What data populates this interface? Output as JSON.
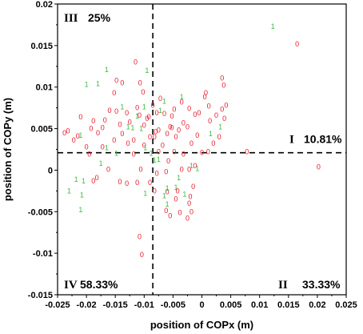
{
  "chart_data": {
    "type": "scatter",
    "xlabel": "position of COPx (m)",
    "ylabel": "position of COPy (m)",
    "xlim": [
      -0.025,
      0.025
    ],
    "ylim": [
      -0.015,
      0.02
    ],
    "xticks": [
      "-0.025",
      "-0.02",
      "-0.015",
      "-0.01",
      "-0.005",
      "0",
      "0.005",
      "0.01",
      "0.015",
      "0.02",
      "0.025"
    ],
    "yticks": [
      "-0.015",
      "-0.01",
      "-0.005",
      "0",
      "0.005",
      "0.01",
      "0.015",
      "0.02"
    ],
    "grid": false,
    "divider_lines": {
      "x": -0.0085,
      "y": 0.0021,
      "style": "dashed"
    },
    "quadrants": [
      {
        "numeral": "I",
        "percent": "10.81%",
        "position": "right-middle"
      },
      {
        "numeral": "II",
        "percent": "33.33%",
        "position": "bottom-right"
      },
      {
        "numeral": "III",
        "percent": "25%",
        "position": "top-left"
      },
      {
        "numeral": "IV",
        "percent": "58.33%",
        "position": "bottom-left"
      }
    ],
    "series": [
      {
        "marker_text": "0",
        "color": "#e8182a",
        "points": [
          [
            0.0165,
            0.0152
          ],
          [
            0.0202,
            0.0004
          ],
          [
            0.0078,
            0.0022
          ],
          [
            0.0035,
            0.0111
          ],
          [
            0.0038,
            0.0102
          ],
          [
            0.0042,
            0.0078
          ],
          [
            0.0035,
            0.0073
          ],
          [
            0.0039,
            0.0062
          ],
          [
            0.0012,
            0.0077
          ],
          [
            0.0025,
            0.0066
          ],
          [
            0.0005,
            0.0088
          ],
          [
            0.0007,
            0.0093
          ],
          [
            0.0014,
            0.0059
          ],
          [
            -0.0005,
            0.0069
          ],
          [
            -0.0012,
            0.0067
          ],
          [
            -0.0022,
            0.0074
          ],
          [
            -0.0035,
            0.0082
          ],
          [
            -0.0048,
            0.0073
          ],
          [
            -0.0055,
            0.0052
          ],
          [
            -0.0065,
            0.0068
          ],
          [
            -0.0072,
            0.0086
          ],
          [
            -0.0078,
            0.0069
          ],
          [
            -0.0085,
            0.0078
          ],
          [
            -0.0092,
            0.0064
          ],
          [
            -0.0075,
            0.0048
          ],
          [
            -0.0082,
            0.004
          ],
          [
            -0.009,
            0.004
          ],
          [
            -0.01,
            0.0054
          ],
          [
            -0.0108,
            0.0066
          ],
          [
            -0.0112,
            0.0075
          ],
          [
            -0.0118,
            0.0036
          ],
          [
            -0.0125,
            0.0058
          ],
          [
            -0.013,
            0.0069
          ],
          [
            -0.0138,
            0.0044
          ],
          [
            -0.0142,
            0.0055
          ],
          [
            -0.0148,
            0.0071
          ],
          [
            -0.0152,
            0.0093
          ],
          [
            -0.016,
            0.0072
          ],
          [
            -0.0168,
            0.006
          ],
          [
            -0.0172,
            0.0051
          ],
          [
            -0.018,
            0.0045
          ],
          [
            -0.0188,
            0.0059
          ],
          [
            -0.0192,
            0.005
          ],
          [
            -0.02,
            0.0028
          ],
          [
            -0.021,
            0.0064
          ],
          [
            -0.0215,
            0.0041
          ],
          [
            -0.0222,
            0.0036
          ],
          [
            -0.0232,
            0.0047
          ],
          [
            -0.0238,
            0.0045
          ],
          [
            -0.0195,
            0.0019
          ],
          [
            -0.0172,
            0.0028
          ],
          [
            -0.0152,
            0.0036
          ],
          [
            -0.0162,
            0.0001
          ],
          [
            -0.0182,
            -0.0009
          ],
          [
            -0.0188,
            -0.0013
          ],
          [
            -0.0142,
            -0.0014
          ],
          [
            -0.013,
            -0.0016
          ],
          [
            -0.0112,
            -0.0015
          ],
          [
            -0.0106,
            0.0001
          ],
          [
            -0.0118,
            0.0019
          ],
          [
            -0.01,
            0.003
          ],
          [
            -0.0128,
            0.0032
          ],
          [
            -0.0138,
            0.0105
          ],
          [
            -0.0148,
            0.0108
          ],
          [
            -0.0115,
            0.013
          ],
          [
            -0.0107,
            0.0105
          ],
          [
            -0.0102,
            0.0094
          ],
          [
            -0.0095,
            0.0062
          ],
          [
            -0.008,
            0.0046
          ],
          [
            -0.0075,
            0.0022
          ],
          [
            -0.0068,
            0.003
          ],
          [
            -0.006,
            0.0044
          ],
          [
            -0.0052,
            0.0051
          ],
          [
            -0.0045,
            0.004
          ],
          [
            -0.004,
            0.0048
          ],
          [
            -0.0032,
            0.0057
          ],
          [
            -0.0025,
            0.0052
          ],
          [
            -0.0018,
            0.0032
          ],
          [
            -0.0008,
            0.0042
          ],
          [
            0.0,
            0.0021
          ],
          [
            0.0011,
            0.0022
          ],
          [
            0.002,
            0.0032
          ],
          [
            0.003,
            0.004
          ],
          [
            -0.0048,
            0.0022
          ],
          [
            -0.0058,
            0.0011
          ],
          [
            -0.0032,
            0.0019
          ],
          [
            -0.0022,
            0.0001
          ],
          [
            -0.0012,
            0.0005
          ],
          [
            -0.0035,
            0.0001
          ],
          [
            -0.0062,
            -0.0002
          ],
          [
            -0.0078,
            -0.0004
          ],
          [
            -0.009,
            -0.0015
          ],
          [
            -0.0082,
            -0.0025
          ],
          [
            -0.006,
            -0.0026
          ],
          [
            -0.0045,
            -0.0035
          ],
          [
            -0.0038,
            -0.0051
          ],
          [
            -0.0055,
            -0.0055
          ],
          [
            -0.0062,
            -0.0049
          ],
          [
            -0.002,
            -0.0032
          ],
          [
            -0.0022,
            -0.004
          ],
          [
            -0.0025,
            -0.0058
          ],
          [
            -0.0018,
            -0.005
          ],
          [
            -0.0042,
            -0.0025
          ],
          [
            -0.0108,
            -0.008
          ],
          [
            -0.0104,
            -0.0102
          ],
          [
            -0.0015,
            -0.002
          ],
          [
            -0.0052,
            0.0065
          ]
        ]
      },
      {
        "marker_text": "1",
        "color": "#3dbb3d",
        "points": [
          [
            0.0123,
            0.0173
          ],
          [
            0.0015,
            0.0044
          ],
          [
            0.0032,
            0.0052
          ],
          [
            -0.0035,
            0.0088
          ],
          [
            -0.0065,
            0.0083
          ],
          [
            -0.0072,
            0.0072
          ],
          [
            -0.0095,
            0.012
          ],
          [
            -0.01,
            0.0076
          ],
          [
            -0.0112,
            0.0065
          ],
          [
            -0.012,
            0.0051
          ],
          [
            -0.0138,
            0.0076
          ],
          [
            -0.0165,
            0.0121
          ],
          [
            -0.018,
            0.0104
          ],
          [
            -0.02,
            0.0103
          ],
          [
            -0.021,
            0.0042
          ],
          [
            -0.0205,
            -0.0013
          ],
          [
            -0.0218,
            -0.0011
          ],
          [
            -0.0208,
            -0.003
          ],
          [
            -0.023,
            -0.0025
          ],
          [
            -0.0165,
            0.0027
          ],
          [
            -0.0128,
            0.0052
          ],
          [
            -0.0098,
            0.0027
          ],
          [
            -0.0088,
            0.002
          ],
          [
            -0.0075,
            0.0013
          ],
          [
            -0.0082,
            0.0012
          ],
          [
            -0.006,
            -0.0022
          ],
          [
            -0.0045,
            -0.0021
          ],
          [
            -0.004,
            -0.0009
          ],
          [
            -0.003,
            -0.0029
          ],
          [
            -0.0065,
            -0.0031
          ],
          [
            -0.0018,
            0.0005
          ],
          [
            -0.0008,
            0.0002
          ],
          [
            -0.0105,
            0.005
          ],
          [
            -0.0175,
            0.0008
          ],
          [
            -0.021,
            -0.0048
          ],
          [
            -0.0148,
            0.002
          ],
          [
            -0.006,
            -0.0041
          ],
          [
            -0.0098,
            -0.0028
          ]
        ]
      }
    ]
  }
}
